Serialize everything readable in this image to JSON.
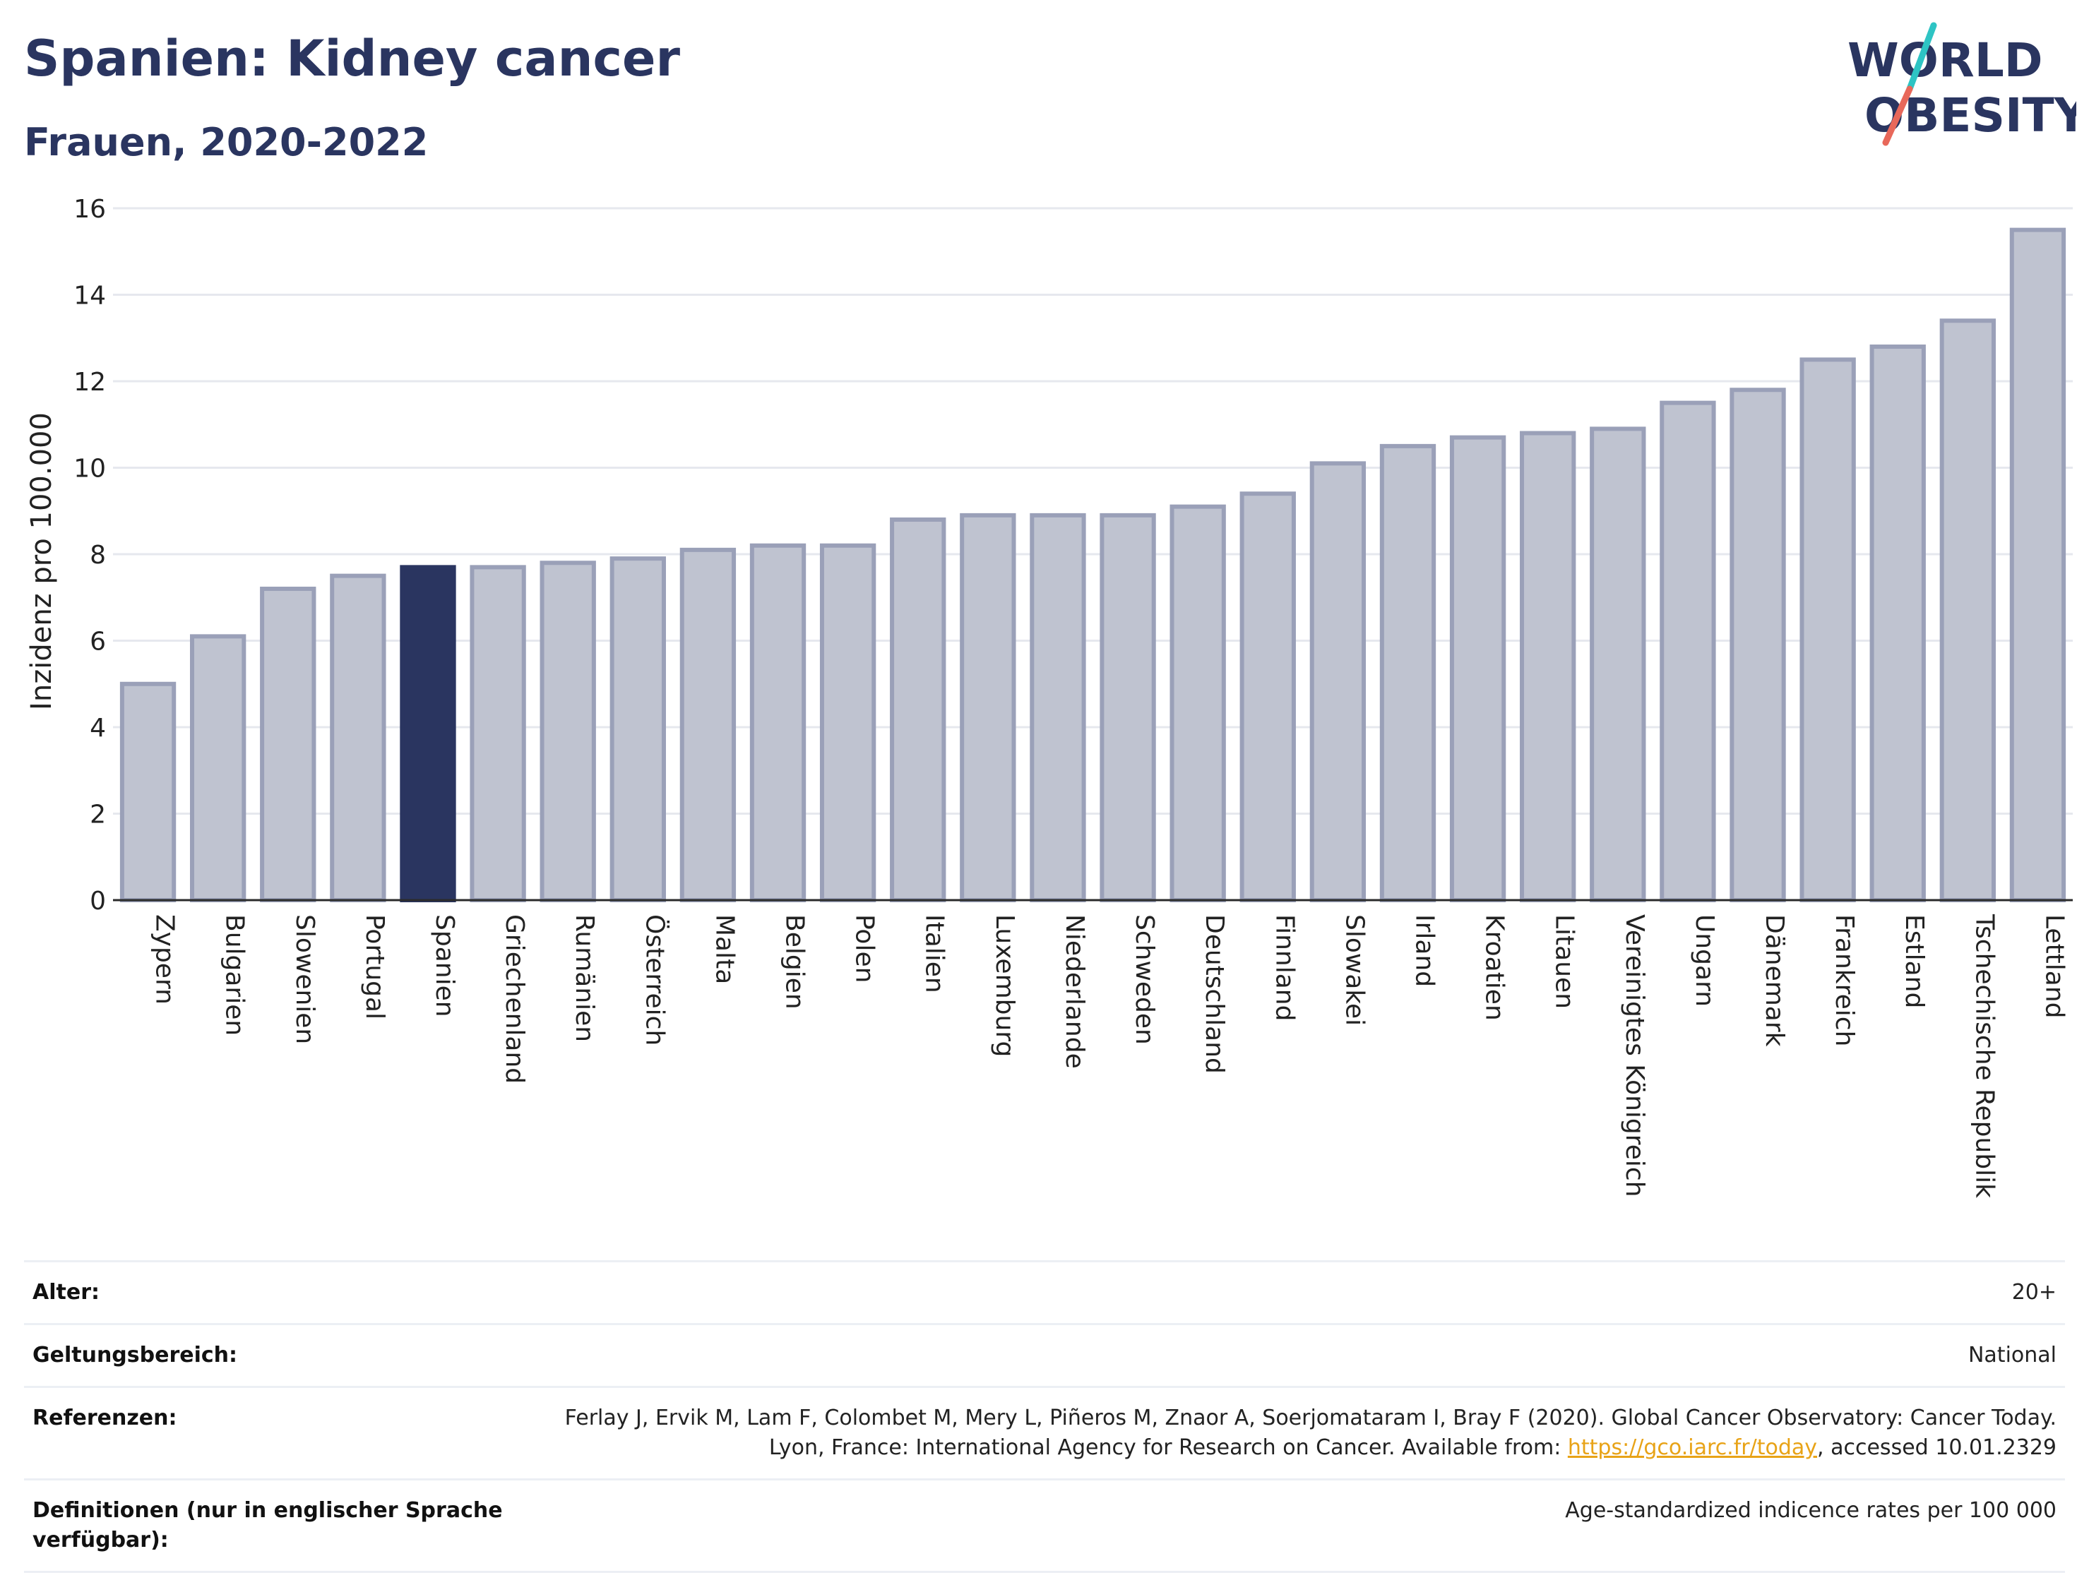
{
  "title": "Spanien: Kidney cancer",
  "subtitle": "Frauen, 2020-2022",
  "logo": {
    "line1": "WORLD",
    "line2": "OBESITY",
    "accent_colors": [
      "#2ec4c4",
      "#e8685a"
    ]
  },
  "colors": {
    "bar": "#bfc3d0",
    "bar_border": "#9aa0b8",
    "highlight": "#2a3560"
  },
  "chart_data": {
    "type": "bar",
    "ylabel": "Inzidenz pro 100.000",
    "xlabel": "",
    "ylim": [
      0,
      16
    ],
    "yticks": [
      0,
      2,
      4,
      6,
      8,
      10,
      12,
      14,
      16
    ],
    "grid": true,
    "highlight": "Spanien",
    "categories": [
      "Zypern",
      "Bulgarien",
      "Slowenien",
      "Portugal",
      "Spanien",
      "Griechenland",
      "Rumänien",
      "Österreich",
      "Malta",
      "Belgien",
      "Polen",
      "Italien",
      "Luxemburg",
      "Niederlande",
      "Schweden",
      "Deutschland",
      "Finnland",
      "Slowakei",
      "Irland",
      "Kroatien",
      "Litauen",
      "Vereinigtes Königreich",
      "Ungarn",
      "Dänemark",
      "Frankreich",
      "Estland",
      "Tschechische Republik",
      "Lettland"
    ],
    "values": [
      5.0,
      6.1,
      7.2,
      7.5,
      7.7,
      7.7,
      7.8,
      7.9,
      8.1,
      8.2,
      8.2,
      8.8,
      8.9,
      8.9,
      8.9,
      9.1,
      9.4,
      10.1,
      10.5,
      10.7,
      10.8,
      10.9,
      11.5,
      11.8,
      12.5,
      12.8,
      13.4,
      15.5
    ]
  },
  "meta": {
    "age_label": "Alter:",
    "age_value": "20+",
    "scope_label": "Geltungsbereich:",
    "scope_value": "National",
    "ref_label": "Referenzen:",
    "ref_text_before": "Ferlay J, Ervik M, Lam F, Colombet M, Mery L, Piñeros M, Znaor A, Soerjomataram I, Bray F (2020). Global Cancer Observatory: Cancer Today. Lyon, France: International Agency for Research on Cancer. Available from: ",
    "ref_link": "https://gco.iarc.fr/today",
    "ref_text_after": ", accessed 10.01.2329",
    "def_label": "Definitionen (nur in englischer Sprache verfügbar):",
    "def_value": "Age-standardized indicence rates per 100 000"
  }
}
